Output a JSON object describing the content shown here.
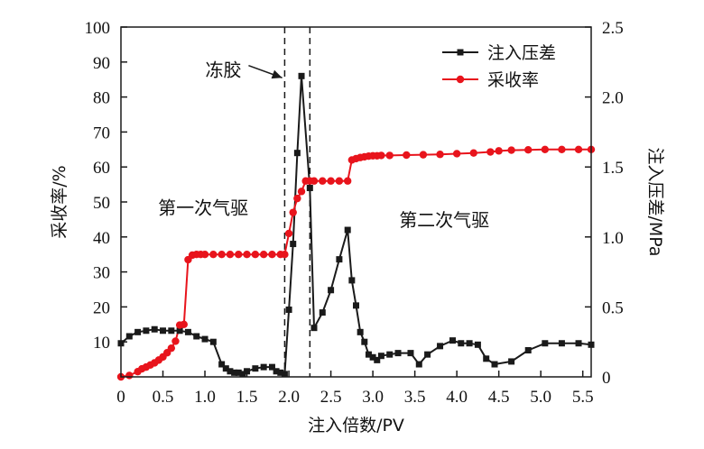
{
  "chart_data": {
    "type": "line",
    "xlabel": "注入倍数/PV",
    "ylabel_left": "采收率/%",
    "ylabel_right": "注入压差/MPa",
    "xlim": [
      0,
      5.6
    ],
    "ylim_left": [
      0,
      100
    ],
    "ylim_right": [
      0,
      2.5
    ],
    "x_ticks": [
      "0",
      "0.5",
      "1.0",
      "1.5",
      "2.0",
      "2.5",
      "3.0",
      "3.5",
      "4.0",
      "4.5",
      "5.0",
      "5.5"
    ],
    "x_tick_values": [
      0,
      0.5,
      1.0,
      1.5,
      2.0,
      2.5,
      3.0,
      3.5,
      4.0,
      4.5,
      5.0,
      5.5
    ],
    "y_left_ticks": [
      "10",
      "20",
      "30",
      "40",
      "50",
      "60",
      "70",
      "80",
      "90",
      "100"
    ],
    "y_left_tick_values": [
      10,
      20,
      30,
      40,
      50,
      60,
      70,
      80,
      90,
      100
    ],
    "y_right_ticks": [
      "0",
      "0.5",
      "1.0",
      "1.5",
      "2.0",
      "2.5"
    ],
    "y_right_tick_values": [
      0,
      0.5,
      1.0,
      1.5,
      2.0,
      2.5
    ],
    "legend_position": "top-right",
    "vlines": [
      1.95,
      2.25
    ],
    "annotations": {
      "gel": "冻胶",
      "first_drive": "第一次气驱",
      "second_drive": "第二次气驱"
    },
    "series": [
      {
        "name": "注入压差",
        "axis": "right",
        "color": "#1a1a1a",
        "marker": "square",
        "x": [
          0,
          0.1,
          0.2,
          0.3,
          0.4,
          0.5,
          0.6,
          0.7,
          0.8,
          0.9,
          1.0,
          1.1,
          1.2,
          1.25,
          1.3,
          1.35,
          1.4,
          1.45,
          1.5,
          1.6,
          1.7,
          1.8,
          1.85,
          1.9,
          1.95,
          2.0,
          2.05,
          2.1,
          2.15,
          2.25,
          2.3,
          2.4,
          2.5,
          2.6,
          2.7,
          2.75,
          2.8,
          2.85,
          2.9,
          2.95,
          3.0,
          3.05,
          3.1,
          3.2,
          3.3,
          3.45,
          3.55,
          3.65,
          3.8,
          3.95,
          4.05,
          4.15,
          4.25,
          4.35,
          4.45,
          4.65,
          4.85,
          5.05,
          5.25,
          5.45,
          5.6
        ],
        "y": [
          0.24,
          0.29,
          0.32,
          0.33,
          0.34,
          0.33,
          0.33,
          0.33,
          0.32,
          0.29,
          0.27,
          0.25,
          0.09,
          0.06,
          0.04,
          0.03,
          0.03,
          0.02,
          0.04,
          0.06,
          0.07,
          0.07,
          0.04,
          0.03,
          0.02,
          0.48,
          0.95,
          1.6,
          2.15,
          1.35,
          0.35,
          0.46,
          0.62,
          0.84,
          1.05,
          0.69,
          0.51,
          0.32,
          0.25,
          0.16,
          0.14,
          0.12,
          0.15,
          0.16,
          0.17,
          0.17,
          0.09,
          0.16,
          0.22,
          0.26,
          0.24,
          0.24,
          0.23,
          0.13,
          0.09,
          0.11,
          0.19,
          0.24,
          0.24,
          0.24,
          0.23
        ]
      },
      {
        "name": "采收率",
        "axis": "left",
        "color": "#e8141c",
        "marker": "circle",
        "x": [
          0,
          0.1,
          0.2,
          0.25,
          0.3,
          0.35,
          0.4,
          0.45,
          0.5,
          0.55,
          0.6,
          0.65,
          0.7,
          0.75,
          0.8,
          0.85,
          0.9,
          0.95,
          1.0,
          1.1,
          1.2,
          1.3,
          1.4,
          1.5,
          1.6,
          1.7,
          1.8,
          1.9,
          1.95,
          2.0,
          2.05,
          2.1,
          2.15,
          2.2,
          2.25,
          2.3,
          2.4,
          2.5,
          2.6,
          2.7,
          2.75,
          2.8,
          2.85,
          2.9,
          2.95,
          3.0,
          3.05,
          3.1,
          3.2,
          3.4,
          3.6,
          3.8,
          4.0,
          4.2,
          4.4,
          4.5,
          4.65,
          4.85,
          5.05,
          5.25,
          5.45,
          5.6
        ],
        "y": [
          0,
          0.4,
          1.5,
          2.3,
          2.8,
          3.4,
          4.0,
          4.8,
          5.7,
          6.9,
          8.2,
          10.2,
          14.8,
          15.0,
          33.5,
          34.8,
          35.0,
          35.0,
          35.0,
          35.0,
          35.0,
          35.0,
          35.0,
          35.0,
          35.0,
          35.0,
          35.0,
          35.0,
          35.0,
          41.0,
          47.0,
          51.0,
          53.0,
          56.0,
          56.0,
          56.0,
          56.0,
          56.0,
          56.0,
          56.0,
          62.0,
          62.4,
          62.7,
          62.9,
          63.1,
          63.2,
          63.2,
          63.3,
          63.3,
          63.4,
          63.5,
          63.6,
          63.8,
          64.0,
          64.3,
          64.6,
          64.8,
          64.9,
          65.0,
          65.0,
          65.0,
          65.0
        ]
      }
    ]
  }
}
